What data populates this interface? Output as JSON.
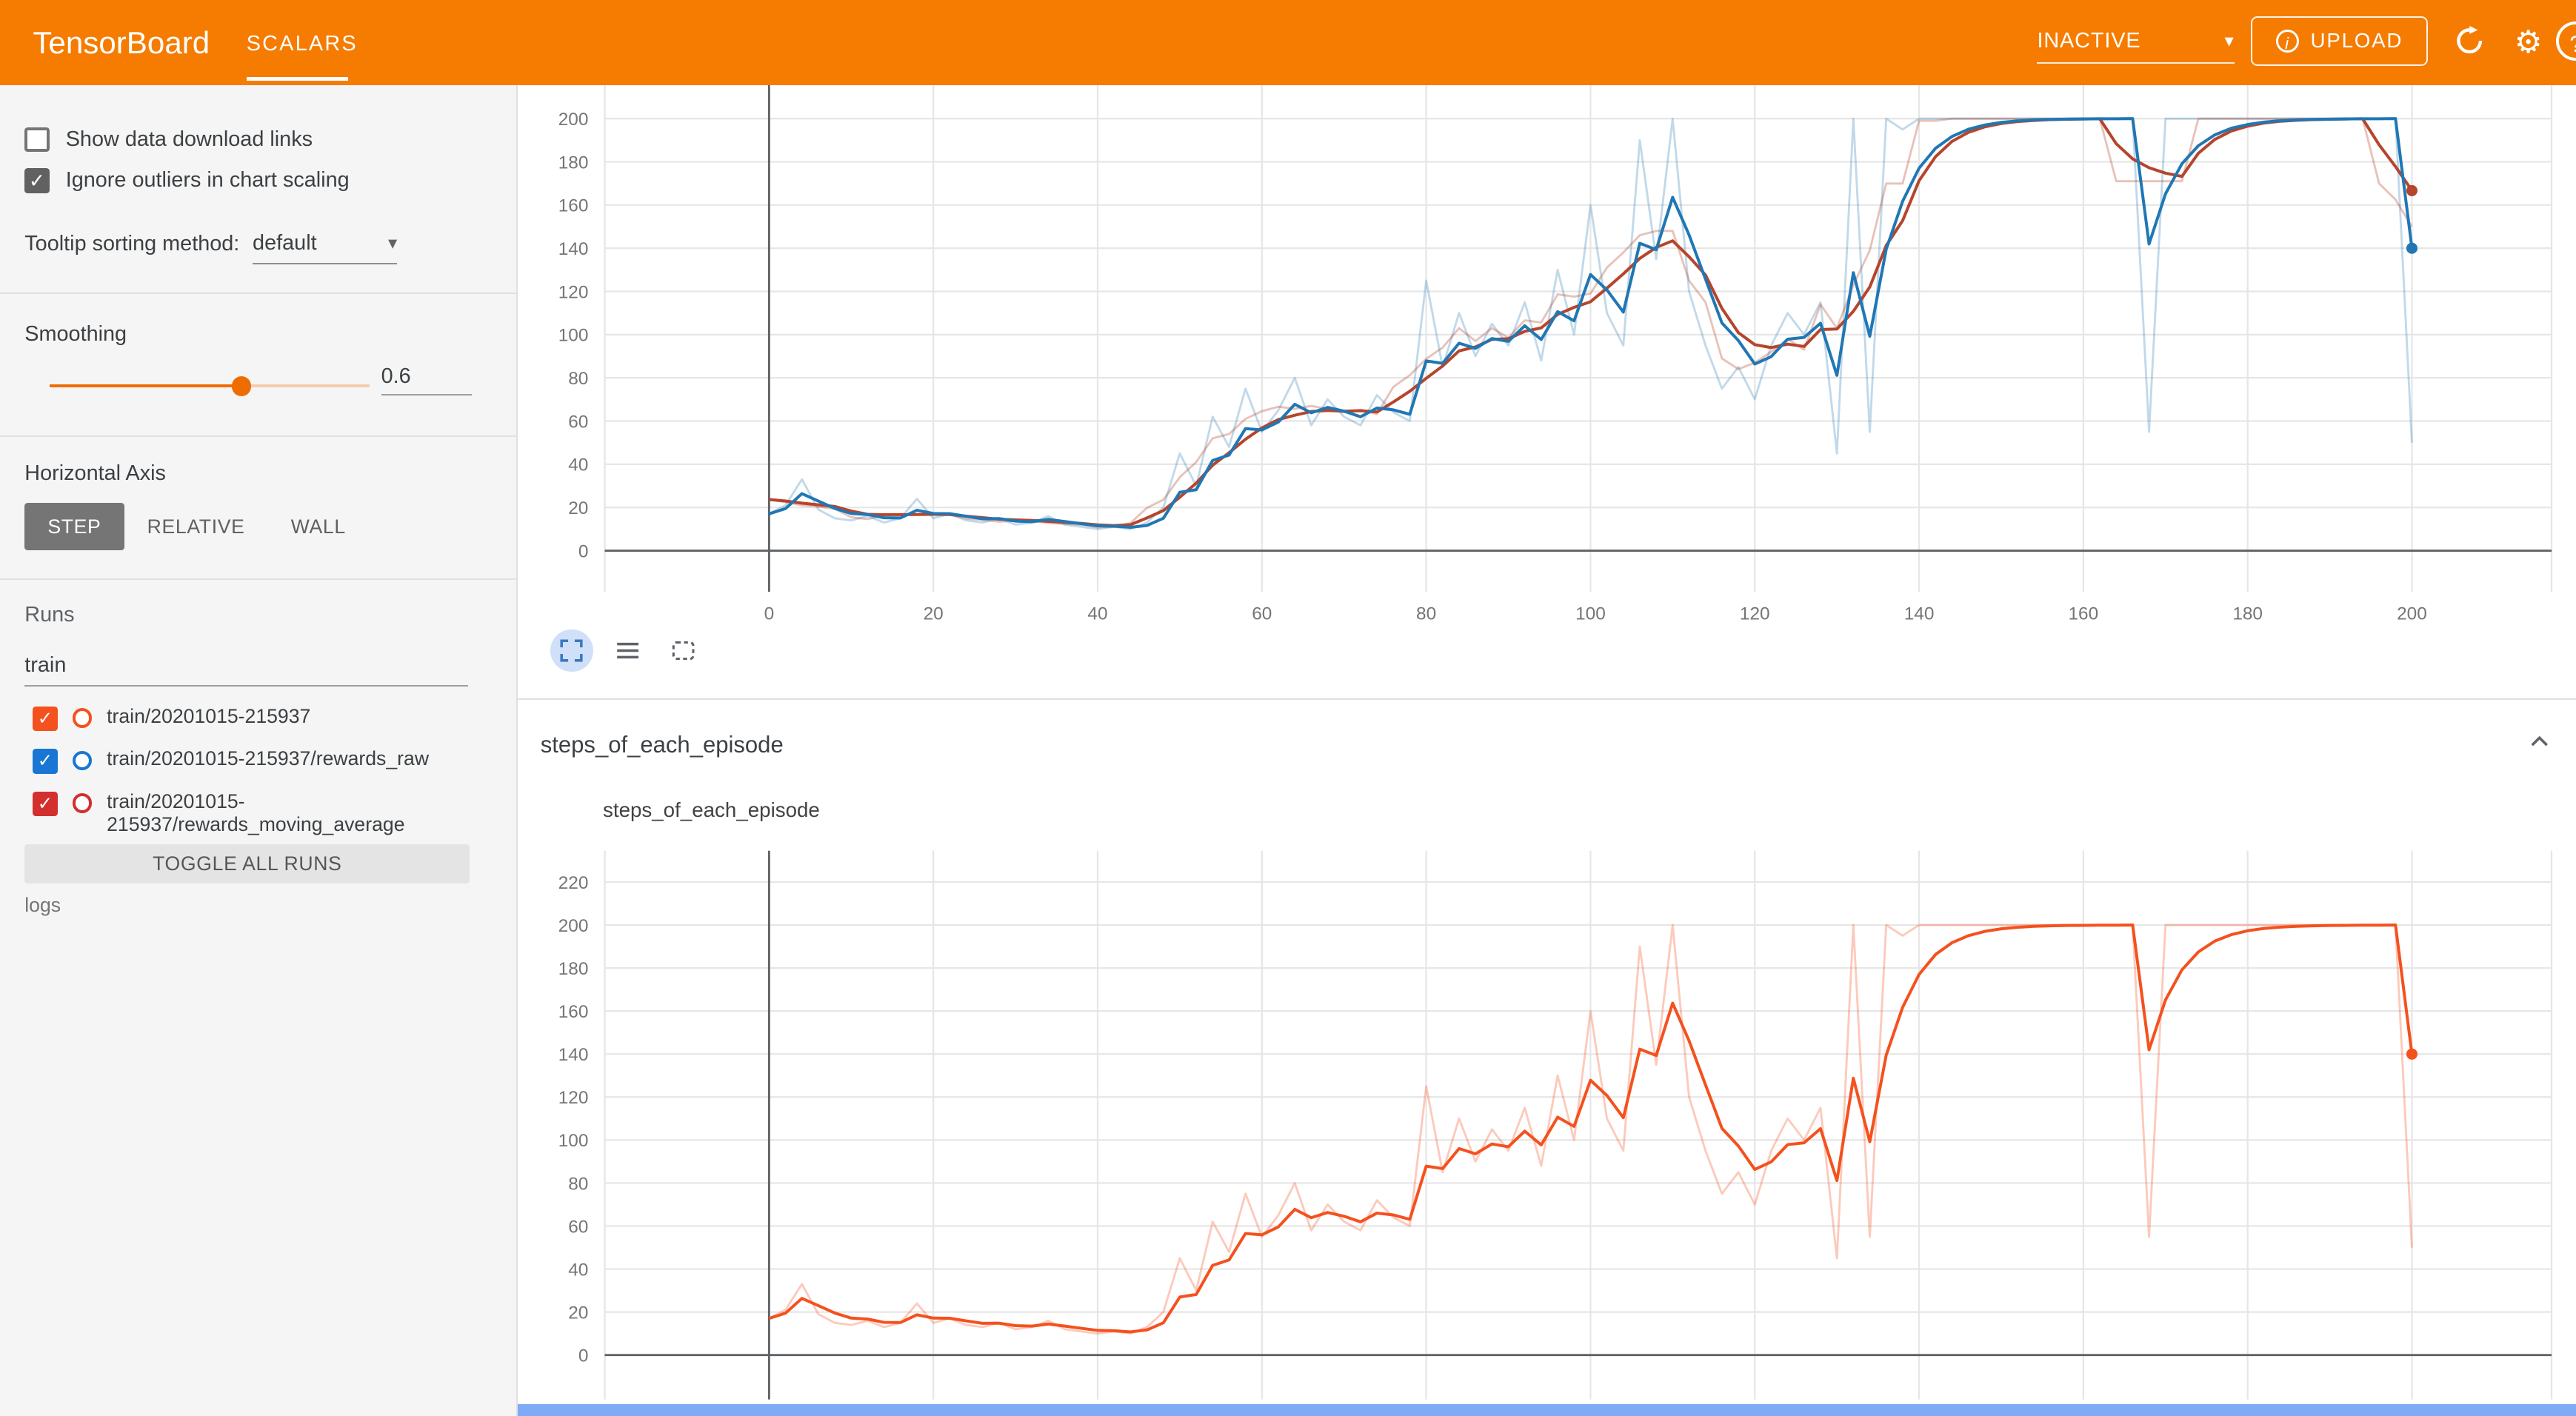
{
  "header": {
    "title": "TensorBoard",
    "active_tab": "SCALARS",
    "status_dropdown": "INACTIVE",
    "upload_label": "UPLOAD",
    "icons": [
      "info-icon",
      "refresh-icon",
      "settings-icon",
      "help-icon"
    ],
    "accent_color": "#f57c00"
  },
  "sidebar": {
    "checkboxes": [
      {
        "label": "Show data download links",
        "checked": false
      },
      {
        "label": "Ignore outliers in chart scaling",
        "checked": true
      }
    ],
    "tooltip_sort": {
      "label": "Tooltip sorting method:",
      "value": "default"
    },
    "smoothing": {
      "label": "Smoothing",
      "value": "0.6",
      "fraction": 0.6
    },
    "horizontal_axis": {
      "label": "Horizontal Axis",
      "options": [
        "STEP",
        "RELATIVE",
        "WALL"
      ],
      "selected": "STEP"
    },
    "runs": {
      "label": "Runs",
      "filter_value": "train",
      "items": [
        {
          "label": "train/20201015-215937",
          "color": "#f4511e",
          "checked": true
        },
        {
          "label": "train/20201015-215937/rewards_raw",
          "color": "#1976d2",
          "checked": true
        },
        {
          "label": "train/20201015-215937/rewards_moving_average",
          "color": "#d32f2f",
          "checked": true
        }
      ],
      "toggle_all_label": "TOGGLE ALL RUNS",
      "footer_label": "logs"
    }
  },
  "main": {
    "section_title": "steps_of_each_episode",
    "card_title": "steps_of_each_episode",
    "toolbar_icons": [
      "expand-chart-icon",
      "data-table-icon",
      "fit-domain-icon"
    ],
    "scrollbar_color": "#7faaf5"
  },
  "chart_data": [
    {
      "type": "line",
      "title": "",
      "x_start": 0,
      "x_step": 2,
      "x_ticks": [
        0,
        20,
        40,
        60,
        80,
        100,
        120,
        140,
        160,
        180,
        200
      ],
      "y_ticks": [
        0,
        20,
        40,
        60,
        80,
        100,
        120,
        140,
        160,
        180,
        200
      ],
      "xlim": [
        -20,
        217
      ],
      "grid": true,
      "smoothing_applied": 0.6,
      "series": [
        {
          "name": "train/20201015-215937/rewards_raw",
          "color": "#2077b4",
          "values": [
            17,
            21,
            33,
            19,
            15,
            14,
            16,
            13,
            15,
            24,
            15,
            17,
            14,
            13,
            15,
            12,
            13,
            16,
            12,
            11,
            10,
            11,
            10,
            13,
            20,
            45,
            30,
            62,
            48,
            75,
            55,
            65,
            80,
            58,
            70,
            62,
            58,
            72,
            64,
            60,
            125,
            85,
            110,
            90,
            105,
            95,
            115,
            88,
            130,
            100,
            160,
            110,
            95,
            190,
            135,
            200,
            120,
            95,
            75,
            85,
            70,
            95,
            110,
            100,
            115,
            45,
            200,
            55,
            200,
            195,
            200,
            200,
            200,
            200,
            200,
            200,
            200,
            200,
            200,
            200,
            200,
            200,
            200,
            200,
            55,
            200,
            200,
            200,
            200,
            200,
            200,
            200,
            200,
            200,
            200,
            200,
            200,
            200,
            200,
            200,
            50
          ]
        },
        {
          "name": "train/20201015-215937/rewards_moving_average",
          "color": "#b5452c",
          "derived_from": "rewards_raw",
          "derivation": "centered moving average, window 5",
          "end_value_approx": 185
        }
      ]
    },
    {
      "type": "line",
      "title": "steps_of_each_episode",
      "x_start": 0,
      "x_step": 2,
      "x_ticks": [
        0,
        20,
        40,
        60,
        80,
        100,
        120,
        140,
        160,
        180,
        200
      ],
      "y_ticks": [
        0,
        20,
        40,
        60,
        80,
        100,
        120,
        140,
        160,
        180,
        200,
        220
      ],
      "xlim": [
        -20,
        217
      ],
      "grid": true,
      "smoothing_applied": 0.6,
      "series": [
        {
          "name": "train/20201015-215937",
          "color": "#f4511e",
          "values": [
            17,
            21,
            33,
            19,
            15,
            14,
            16,
            13,
            15,
            24,
            15,
            17,
            14,
            13,
            15,
            12,
            13,
            16,
            12,
            11,
            10,
            11,
            10,
            13,
            20,
            45,
            30,
            62,
            48,
            75,
            55,
            65,
            80,
            58,
            70,
            62,
            58,
            72,
            64,
            60,
            125,
            85,
            110,
            90,
            105,
            95,
            115,
            88,
            130,
            100,
            160,
            110,
            95,
            190,
            135,
            200,
            120,
            95,
            75,
            85,
            70,
            95,
            110,
            100,
            115,
            45,
            200,
            55,
            200,
            195,
            200,
            200,
            200,
            200,
            200,
            200,
            200,
            200,
            200,
            200,
            200,
            200,
            200,
            200,
            55,
            200,
            200,
            200,
            200,
            200,
            200,
            200,
            200,
            200,
            200,
            200,
            200,
            200,
            200,
            200,
            50
          ]
        }
      ]
    }
  ]
}
